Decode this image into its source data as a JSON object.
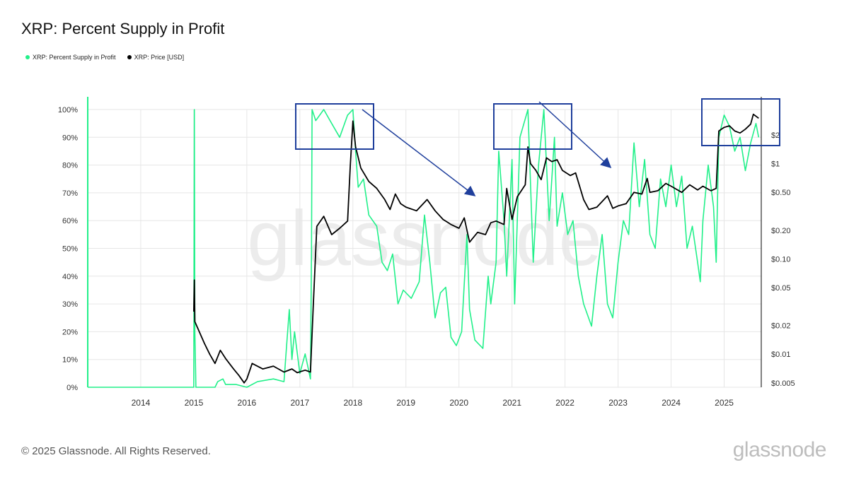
{
  "title": "XRP: Percent Supply in Profit",
  "legend": [
    {
      "label": "XRP: Percent Supply in Profit",
      "color": "#22f08a"
    },
    {
      "label": "XRP: Price [USD]",
      "color": "#000000"
    }
  ],
  "copyright": "© 2025 Glassnode. All Rights Reserved.",
  "logo_text": "glassnode",
  "watermark": "glassnode",
  "colors": {
    "profit": "#22f08a",
    "price": "#000000",
    "box": "#1f3f9c",
    "grid": "#e6e6e6"
  },
  "chart_data": {
    "type": "line",
    "title": "XRP: Percent Supply in Profit",
    "x_ticks": [
      "2014",
      "2015",
      "2016",
      "2017",
      "2018",
      "2019",
      "2020",
      "2021",
      "2022",
      "2023",
      "2024",
      "2025"
    ],
    "x_range": [
      2013.0,
      2025.7
    ],
    "y_left": {
      "ticks": [
        "0%",
        "10%",
        "20%",
        "30%",
        "40%",
        "50%",
        "60%",
        "70%",
        "80%",
        "90%",
        "100%"
      ],
      "range": [
        0,
        100
      ]
    },
    "y_right": {
      "scale": "log",
      "ticks": [
        "$0.005",
        "$0.01",
        "$0.02",
        "$0.05",
        "$0.10",
        "$0.20",
        "$0.50",
        "$1",
        "$2"
      ],
      "tick_values": [
        0.005,
        0.01,
        0.02,
        0.05,
        0.1,
        0.2,
        0.5,
        1,
        2
      ],
      "range": [
        0.0045,
        3.7
      ]
    },
    "grid": true,
    "legend_position": "top-left",
    "series": [
      {
        "name": "XRP: Percent Supply in Profit",
        "axis": "left",
        "color": "#22f08a",
        "points": [
          [
            2013.0,
            0
          ],
          [
            2015.0,
            0
          ],
          [
            2015.01,
            100
          ],
          [
            2015.02,
            20
          ],
          [
            2015.04,
            0
          ],
          [
            2015.4,
            0
          ],
          [
            2015.45,
            2
          ],
          [
            2015.55,
            3
          ],
          [
            2015.6,
            1
          ],
          [
            2015.8,
            1
          ],
          [
            2016.0,
            0
          ],
          [
            2016.2,
            2
          ],
          [
            2016.5,
            3
          ],
          [
            2016.7,
            2
          ],
          [
            2016.75,
            15
          ],
          [
            2016.8,
            28
          ],
          [
            2016.85,
            10
          ],
          [
            2016.9,
            20
          ],
          [
            2017.0,
            5
          ],
          [
            2017.1,
            12
          ],
          [
            2017.2,
            3
          ],
          [
            2017.22,
            50
          ],
          [
            2017.23,
            100
          ],
          [
            2017.3,
            96
          ],
          [
            2017.45,
            100
          ],
          [
            2017.6,
            95
          ],
          [
            2017.75,
            90
          ],
          [
            2017.9,
            98
          ],
          [
            2018.0,
            100
          ],
          [
            2018.05,
            85
          ],
          [
            2018.1,
            72
          ],
          [
            2018.2,
            75
          ],
          [
            2018.3,
            62
          ],
          [
            2018.45,
            58
          ],
          [
            2018.55,
            45
          ],
          [
            2018.65,
            42
          ],
          [
            2018.75,
            48
          ],
          [
            2018.85,
            30
          ],
          [
            2018.95,
            35
          ],
          [
            2019.1,
            32
          ],
          [
            2019.25,
            38
          ],
          [
            2019.35,
            62
          ],
          [
            2019.45,
            45
          ],
          [
            2019.55,
            25
          ],
          [
            2019.65,
            34
          ],
          [
            2019.75,
            36
          ],
          [
            2019.85,
            18
          ],
          [
            2019.95,
            15
          ],
          [
            2020.05,
            20
          ],
          [
            2020.15,
            55
          ],
          [
            2020.2,
            28
          ],
          [
            2020.3,
            17
          ],
          [
            2020.45,
            14
          ],
          [
            2020.55,
            40
          ],
          [
            2020.6,
            30
          ],
          [
            2020.7,
            45
          ],
          [
            2020.75,
            85
          ],
          [
            2020.85,
            60
          ],
          [
            2020.9,
            40
          ],
          [
            2021.0,
            82
          ],
          [
            2021.05,
            30
          ],
          [
            2021.15,
            90
          ],
          [
            2021.3,
            100
          ],
          [
            2021.4,
            45
          ],
          [
            2021.5,
            80
          ],
          [
            2021.6,
            100
          ],
          [
            2021.7,
            60
          ],
          [
            2021.8,
            90
          ],
          [
            2021.85,
            58
          ],
          [
            2021.95,
            70
          ],
          [
            2022.05,
            55
          ],
          [
            2022.15,
            60
          ],
          [
            2022.25,
            40
          ],
          [
            2022.35,
            30
          ],
          [
            2022.5,
            22
          ],
          [
            2022.6,
            40
          ],
          [
            2022.7,
            55
          ],
          [
            2022.8,
            30
          ],
          [
            2022.9,
            25
          ],
          [
            2023.0,
            45
          ],
          [
            2023.1,
            60
          ],
          [
            2023.2,
            55
          ],
          [
            2023.3,
            88
          ],
          [
            2023.4,
            65
          ],
          [
            2023.5,
            82
          ],
          [
            2023.6,
            55
          ],
          [
            2023.7,
            50
          ],
          [
            2023.8,
            75
          ],
          [
            2023.9,
            65
          ],
          [
            2024.0,
            80
          ],
          [
            2024.1,
            65
          ],
          [
            2024.2,
            76
          ],
          [
            2024.3,
            50
          ],
          [
            2024.4,
            58
          ],
          [
            2024.5,
            45
          ],
          [
            2024.55,
            38
          ],
          [
            2024.6,
            60
          ],
          [
            2024.7,
            80
          ],
          [
            2024.8,
            65
          ],
          [
            2024.85,
            45
          ],
          [
            2024.9,
            90
          ],
          [
            2025.0,
            98
          ],
          [
            2025.1,
            94
          ],
          [
            2025.2,
            85
          ],
          [
            2025.3,
            90
          ],
          [
            2025.4,
            78
          ],
          [
            2025.5,
            88
          ],
          [
            2025.6,
            95
          ],
          [
            2025.65,
            90
          ]
        ]
      },
      {
        "name": "XRP: Price [USD]",
        "axis": "right",
        "color": "#000000",
        "points": [
          [
            2015.0,
            0.028
          ],
          [
            2015.01,
            0.06
          ],
          [
            2015.02,
            0.022
          ],
          [
            2015.2,
            0.013
          ],
          [
            2015.3,
            0.01
          ],
          [
            2015.4,
            0.008
          ],
          [
            2015.5,
            0.011
          ],
          [
            2015.6,
            0.009
          ],
          [
            2015.75,
            0.007
          ],
          [
            2015.85,
            0.006
          ],
          [
            2015.95,
            0.005
          ],
          [
            2016.0,
            0.0055
          ],
          [
            2016.1,
            0.008
          ],
          [
            2016.3,
            0.007
          ],
          [
            2016.5,
            0.0075
          ],
          [
            2016.7,
            0.0065
          ],
          [
            2016.85,
            0.007
          ],
          [
            2016.95,
            0.0064
          ],
          [
            2017.1,
            0.0068
          ],
          [
            2017.2,
            0.0065
          ],
          [
            2017.25,
            0.03
          ],
          [
            2017.32,
            0.22
          ],
          [
            2017.45,
            0.28
          ],
          [
            2017.6,
            0.18
          ],
          [
            2017.75,
            0.21
          ],
          [
            2017.9,
            0.25
          ],
          [
            2017.95,
            0.95
          ],
          [
            2018.0,
            2.8
          ],
          [
            2018.05,
            1.5
          ],
          [
            2018.15,
            0.9
          ],
          [
            2018.3,
            0.65
          ],
          [
            2018.45,
            0.55
          ],
          [
            2018.6,
            0.42
          ],
          [
            2018.7,
            0.33
          ],
          [
            2018.8,
            0.48
          ],
          [
            2018.9,
            0.38
          ],
          [
            2019.0,
            0.35
          ],
          [
            2019.2,
            0.32
          ],
          [
            2019.4,
            0.42
          ],
          [
            2019.55,
            0.32
          ],
          [
            2019.7,
            0.26
          ],
          [
            2019.85,
            0.23
          ],
          [
            2020.0,
            0.21
          ],
          [
            2020.1,
            0.27
          ],
          [
            2020.2,
            0.15
          ],
          [
            2020.35,
            0.19
          ],
          [
            2020.5,
            0.18
          ],
          [
            2020.6,
            0.24
          ],
          [
            2020.7,
            0.25
          ],
          [
            2020.85,
            0.23
          ],
          [
            2020.9,
            0.55
          ],
          [
            2021.0,
            0.26
          ],
          [
            2021.1,
            0.45
          ],
          [
            2021.25,
            0.6
          ],
          [
            2021.3,
            1.5
          ],
          [
            2021.35,
            1.0
          ],
          [
            2021.45,
            0.85
          ],
          [
            2021.55,
            0.68
          ],
          [
            2021.65,
            1.15
          ],
          [
            2021.75,
            1.05
          ],
          [
            2021.85,
            1.1
          ],
          [
            2021.95,
            0.85
          ],
          [
            2022.1,
            0.75
          ],
          [
            2022.2,
            0.8
          ],
          [
            2022.35,
            0.42
          ],
          [
            2022.45,
            0.33
          ],
          [
            2022.6,
            0.35
          ],
          [
            2022.8,
            0.46
          ],
          [
            2022.9,
            0.34
          ],
          [
            2023.0,
            0.36
          ],
          [
            2023.15,
            0.38
          ],
          [
            2023.3,
            0.5
          ],
          [
            2023.45,
            0.48
          ],
          [
            2023.55,
            0.7
          ],
          [
            2023.6,
            0.5
          ],
          [
            2023.75,
            0.52
          ],
          [
            2023.9,
            0.62
          ],
          [
            2024.0,
            0.58
          ],
          [
            2024.2,
            0.5
          ],
          [
            2024.35,
            0.6
          ],
          [
            2024.5,
            0.53
          ],
          [
            2024.6,
            0.58
          ],
          [
            2024.75,
            0.52
          ],
          [
            2024.85,
            0.55
          ],
          [
            2024.9,
            2.2
          ],
          [
            2025.0,
            2.4
          ],
          [
            2025.1,
            2.5
          ],
          [
            2025.2,
            2.2
          ],
          [
            2025.3,
            2.1
          ],
          [
            2025.4,
            2.3
          ],
          [
            2025.5,
            2.6
          ],
          [
            2025.55,
            3.3
          ],
          [
            2025.65,
            3.0
          ]
        ]
      }
    ]
  },
  "annotations": [
    {
      "name": "box-2017-2018-top"
    },
    {
      "name": "box-2021-top"
    },
    {
      "name": "box-2025-top"
    },
    {
      "name": "arrow-2018-decline"
    },
    {
      "name": "arrow-2021-decline"
    }
  ]
}
